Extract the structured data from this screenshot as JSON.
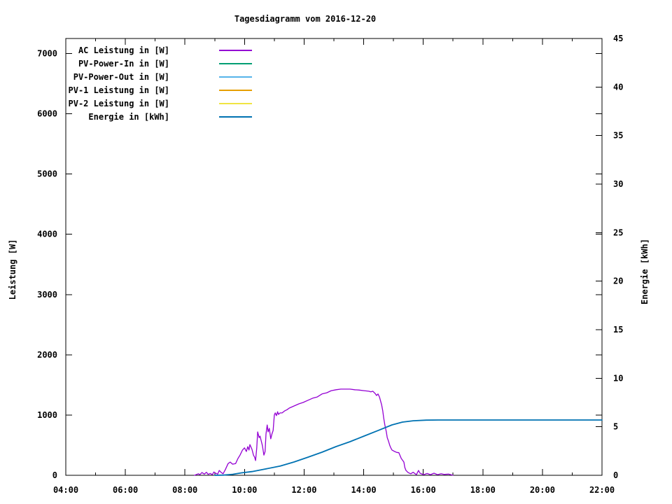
{
  "title": "Tagesdiagramm vom 2016-12-20",
  "axes": {
    "y1_label": "Leistung [W]",
    "y2_label": "Energie [kWh]"
  },
  "chart_data": {
    "type": "line",
    "title": "Tagesdiagramm vom 2016-12-20",
    "xlabel": "",
    "y1": {
      "label": "Leistung [W]",
      "max": 7250,
      "ticks": [
        {
          "v": 0,
          "label": "0"
        },
        {
          "v": 1000,
          "label": "1000"
        },
        {
          "v": 2000,
          "label": "2000"
        },
        {
          "v": 3000,
          "label": "3000"
        },
        {
          "v": 4000,
          "label": "4000"
        },
        {
          "v": 5000,
          "label": "5000"
        },
        {
          "v": 6000,
          "label": "6000"
        },
        {
          "v": 7000,
          "label": "7000"
        }
      ]
    },
    "y2": {
      "label": "Energie [kWh]",
      "max": 45,
      "ticks": [
        {
          "v": 0,
          "label": "0"
        },
        {
          "v": 5,
          "label": "5"
        },
        {
          "v": 10,
          "label": "10"
        },
        {
          "v": 15,
          "label": "15"
        },
        {
          "v": 20,
          "label": "20"
        },
        {
          "v": 25,
          "label": "25"
        },
        {
          "v": 30,
          "label": "30"
        },
        {
          "v": 35,
          "label": "35"
        },
        {
          "v": 40,
          "label": "40"
        },
        {
          "v": 45,
          "label": "45"
        }
      ]
    },
    "x": {
      "min": 4,
      "max": 22,
      "ticks": [
        {
          "v": 4,
          "label": "04:00"
        },
        {
          "v": 6,
          "label": "06:00"
        },
        {
          "v": 8,
          "label": "08:00"
        },
        {
          "v": 10,
          "label": "10:00"
        },
        {
          "v": 12,
          "label": "12:00"
        },
        {
          "v": 14,
          "label": "14:00"
        },
        {
          "v": 16,
          "label": "16:00"
        },
        {
          "v": 18,
          "label": "18:00"
        },
        {
          "v": 20,
          "label": "20:00"
        },
        {
          "v": 22,
          "label": "22:00"
        }
      ],
      "minor_hours": [
        5,
        7,
        9,
        11,
        13,
        15,
        17,
        19,
        21
      ]
    },
    "legend_position": "top-left-inside",
    "grid": false,
    "series": [
      {
        "name": "AC Leistung in [W]",
        "color": "#9400d3",
        "axis": "y1",
        "points": [
          [
            8.32,
            0
          ],
          [
            8.45,
            25
          ],
          [
            8.5,
            10
          ],
          [
            8.57,
            45
          ],
          [
            8.65,
            20
          ],
          [
            8.72,
            50
          ],
          [
            8.78,
            15
          ],
          [
            8.85,
            30
          ],
          [
            8.92,
            10
          ],
          [
            8.97,
            55
          ],
          [
            9.03,
            35
          ],
          [
            9.1,
            20
          ],
          [
            9.15,
            80
          ],
          [
            9.22,
            45
          ],
          [
            9.28,
            25
          ],
          [
            9.35,
            90
          ],
          [
            9.45,
            195
          ],
          [
            9.52,
            220
          ],
          [
            9.6,
            185
          ],
          [
            9.7,
            195
          ],
          [
            9.78,
            280
          ],
          [
            9.85,
            335
          ],
          [
            9.93,
            420
          ],
          [
            10.0,
            455
          ],
          [
            10.06,
            395
          ],
          [
            10.11,
            475
          ],
          [
            10.15,
            420
          ],
          [
            10.18,
            510
          ],
          [
            10.25,
            430
          ],
          [
            10.3,
            335
          ],
          [
            10.34,
            300
          ],
          [
            10.37,
            245
          ],
          [
            10.41,
            455
          ],
          [
            10.44,
            720
          ],
          [
            10.49,
            625
          ],
          [
            10.52,
            650
          ],
          [
            10.56,
            570
          ],
          [
            10.6,
            490
          ],
          [
            10.65,
            335
          ],
          [
            10.69,
            395
          ],
          [
            10.72,
            685
          ],
          [
            10.76,
            835
          ],
          [
            10.79,
            720
          ],
          [
            10.83,
            780
          ],
          [
            10.88,
            605
          ],
          [
            10.92,
            685
          ],
          [
            10.96,
            745
          ],
          [
            11.0,
            1000
          ],
          [
            11.03,
            1035
          ],
          [
            11.07,
            990
          ],
          [
            11.11,
            1055
          ],
          [
            11.14,
            1010
          ],
          [
            11.19,
            1035
          ],
          [
            11.26,
            1035
          ],
          [
            11.35,
            1070
          ],
          [
            11.43,
            1090
          ],
          [
            11.5,
            1115
          ],
          [
            11.66,
            1150
          ],
          [
            11.82,
            1185
          ],
          [
            11.97,
            1210
          ],
          [
            12.13,
            1245
          ],
          [
            12.29,
            1280
          ],
          [
            12.44,
            1300
          ],
          [
            12.6,
            1350
          ],
          [
            12.76,
            1370
          ],
          [
            12.91,
            1405
          ],
          [
            13.07,
            1420
          ],
          [
            13.23,
            1430
          ],
          [
            13.38,
            1430
          ],
          [
            13.54,
            1430
          ],
          [
            13.7,
            1420
          ],
          [
            13.84,
            1415
          ],
          [
            14.01,
            1405
          ],
          [
            14.17,
            1395
          ],
          [
            14.24,
            1385
          ],
          [
            14.31,
            1395
          ],
          [
            14.38,
            1360
          ],
          [
            14.43,
            1325
          ],
          [
            14.48,
            1350
          ],
          [
            14.53,
            1300
          ],
          [
            14.56,
            1245
          ],
          [
            14.6,
            1175
          ],
          [
            14.64,
            1070
          ],
          [
            14.67,
            955
          ],
          [
            14.71,
            835
          ],
          [
            14.76,
            720
          ],
          [
            14.79,
            625
          ],
          [
            14.83,
            570
          ],
          [
            14.88,
            490
          ],
          [
            14.91,
            455
          ],
          [
            14.95,
            420
          ],
          [
            15.02,
            400
          ],
          [
            15.11,
            380
          ],
          [
            15.18,
            375
          ],
          [
            15.26,
            280
          ],
          [
            15.35,
            220
          ],
          [
            15.38,
            130
          ],
          [
            15.42,
            80
          ],
          [
            15.49,
            45
          ],
          [
            15.58,
            25
          ],
          [
            15.66,
            50
          ],
          [
            15.77,
            10
          ],
          [
            15.84,
            80
          ],
          [
            15.89,
            35
          ],
          [
            16.01,
            10
          ],
          [
            16.13,
            30
          ],
          [
            16.24,
            10
          ],
          [
            16.36,
            35
          ],
          [
            16.48,
            10
          ],
          [
            16.6,
            25
          ],
          [
            16.7,
            15
          ],
          [
            16.85,
            20
          ],
          [
            17.0,
            0
          ]
        ]
      },
      {
        "name": "PV-Power-In in [W]",
        "color": "#009e73",
        "axis": "y1",
        "points": []
      },
      {
        "name": "PV-Power-Out in [W]",
        "color": "#56b4e9",
        "axis": "y1",
        "points": []
      },
      {
        "name": "PV-1 Leistung in [W]",
        "color": "#e69f00",
        "axis": "y1",
        "points": []
      },
      {
        "name": "PV-2 Leistung in [W]",
        "color": "#f0e442",
        "axis": "y1",
        "points": []
      },
      {
        "name": "Energie in [kWh]",
        "color": "#0072b2",
        "axis": "y2",
        "points": [
          [
            9.0,
            0
          ],
          [
            9.3,
            0.02
          ],
          [
            9.6,
            0.1
          ],
          [
            9.9,
            0.25
          ],
          [
            10.25,
            0.38
          ],
          [
            10.7,
            0.65
          ],
          [
            11.2,
            0.95
          ],
          [
            11.66,
            1.37
          ],
          [
            12.13,
            1.87
          ],
          [
            12.6,
            2.38
          ],
          [
            13.07,
            2.96
          ],
          [
            13.54,
            3.46
          ],
          [
            14.01,
            4.04
          ],
          [
            14.48,
            4.61
          ],
          [
            14.95,
            5.19
          ],
          [
            15.3,
            5.48
          ],
          [
            15.66,
            5.62
          ],
          [
            16.1,
            5.68
          ],
          [
            16.5,
            5.7
          ],
          [
            22.0,
            5.7
          ]
        ]
      }
    ]
  }
}
